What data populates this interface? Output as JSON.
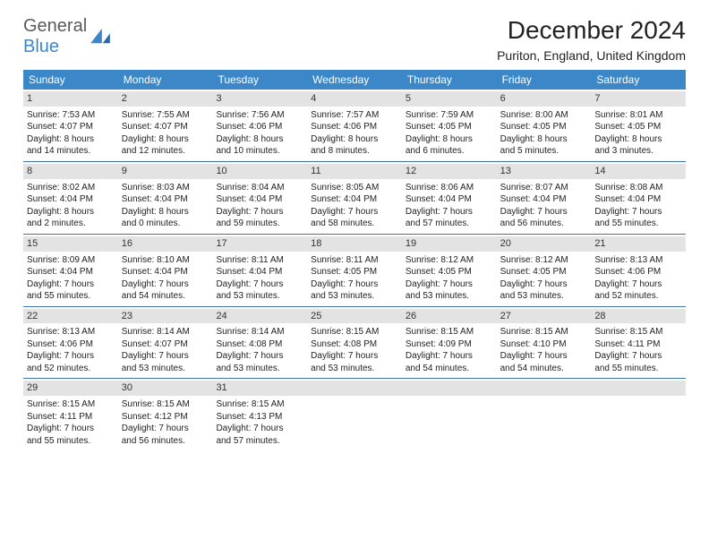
{
  "logo": {
    "word1": "General",
    "word2": "Blue"
  },
  "title": "December 2024",
  "subtitle": "Puriton, England, United Kingdom",
  "colors": {
    "header_bg": "#3b87c8",
    "header_text": "#ffffff",
    "daynum_bg": "#e3e3e3",
    "week_border": "#3b72a8",
    "body_text": "#222222",
    "logo_gray": "#5a5a5a",
    "logo_blue": "#3b87c8"
  },
  "day_headers": [
    "Sunday",
    "Monday",
    "Tuesday",
    "Wednesday",
    "Thursday",
    "Friday",
    "Saturday"
  ],
  "weeks": [
    [
      {
        "n": "1",
        "sr": "Sunrise: 7:53 AM",
        "ss": "Sunset: 4:07 PM",
        "d1": "Daylight: 8 hours",
        "d2": "and 14 minutes."
      },
      {
        "n": "2",
        "sr": "Sunrise: 7:55 AM",
        "ss": "Sunset: 4:07 PM",
        "d1": "Daylight: 8 hours",
        "d2": "and 12 minutes."
      },
      {
        "n": "3",
        "sr": "Sunrise: 7:56 AM",
        "ss": "Sunset: 4:06 PM",
        "d1": "Daylight: 8 hours",
        "d2": "and 10 minutes."
      },
      {
        "n": "4",
        "sr": "Sunrise: 7:57 AM",
        "ss": "Sunset: 4:06 PM",
        "d1": "Daylight: 8 hours",
        "d2": "and 8 minutes."
      },
      {
        "n": "5",
        "sr": "Sunrise: 7:59 AM",
        "ss": "Sunset: 4:05 PM",
        "d1": "Daylight: 8 hours",
        "d2": "and 6 minutes."
      },
      {
        "n": "6",
        "sr": "Sunrise: 8:00 AM",
        "ss": "Sunset: 4:05 PM",
        "d1": "Daylight: 8 hours",
        "d2": "and 5 minutes."
      },
      {
        "n": "7",
        "sr": "Sunrise: 8:01 AM",
        "ss": "Sunset: 4:05 PM",
        "d1": "Daylight: 8 hours",
        "d2": "and 3 minutes."
      }
    ],
    [
      {
        "n": "8",
        "sr": "Sunrise: 8:02 AM",
        "ss": "Sunset: 4:04 PM",
        "d1": "Daylight: 8 hours",
        "d2": "and 2 minutes."
      },
      {
        "n": "9",
        "sr": "Sunrise: 8:03 AM",
        "ss": "Sunset: 4:04 PM",
        "d1": "Daylight: 8 hours",
        "d2": "and 0 minutes."
      },
      {
        "n": "10",
        "sr": "Sunrise: 8:04 AM",
        "ss": "Sunset: 4:04 PM",
        "d1": "Daylight: 7 hours",
        "d2": "and 59 minutes."
      },
      {
        "n": "11",
        "sr": "Sunrise: 8:05 AM",
        "ss": "Sunset: 4:04 PM",
        "d1": "Daylight: 7 hours",
        "d2": "and 58 minutes."
      },
      {
        "n": "12",
        "sr": "Sunrise: 8:06 AM",
        "ss": "Sunset: 4:04 PM",
        "d1": "Daylight: 7 hours",
        "d2": "and 57 minutes."
      },
      {
        "n": "13",
        "sr": "Sunrise: 8:07 AM",
        "ss": "Sunset: 4:04 PM",
        "d1": "Daylight: 7 hours",
        "d2": "and 56 minutes."
      },
      {
        "n": "14",
        "sr": "Sunrise: 8:08 AM",
        "ss": "Sunset: 4:04 PM",
        "d1": "Daylight: 7 hours",
        "d2": "and 55 minutes."
      }
    ],
    [
      {
        "n": "15",
        "sr": "Sunrise: 8:09 AM",
        "ss": "Sunset: 4:04 PM",
        "d1": "Daylight: 7 hours",
        "d2": "and 55 minutes."
      },
      {
        "n": "16",
        "sr": "Sunrise: 8:10 AM",
        "ss": "Sunset: 4:04 PM",
        "d1": "Daylight: 7 hours",
        "d2": "and 54 minutes."
      },
      {
        "n": "17",
        "sr": "Sunrise: 8:11 AM",
        "ss": "Sunset: 4:04 PM",
        "d1": "Daylight: 7 hours",
        "d2": "and 53 minutes."
      },
      {
        "n": "18",
        "sr": "Sunrise: 8:11 AM",
        "ss": "Sunset: 4:05 PM",
        "d1": "Daylight: 7 hours",
        "d2": "and 53 minutes."
      },
      {
        "n": "19",
        "sr": "Sunrise: 8:12 AM",
        "ss": "Sunset: 4:05 PM",
        "d1": "Daylight: 7 hours",
        "d2": "and 53 minutes."
      },
      {
        "n": "20",
        "sr": "Sunrise: 8:12 AM",
        "ss": "Sunset: 4:05 PM",
        "d1": "Daylight: 7 hours",
        "d2": "and 53 minutes."
      },
      {
        "n": "21",
        "sr": "Sunrise: 8:13 AM",
        "ss": "Sunset: 4:06 PM",
        "d1": "Daylight: 7 hours",
        "d2": "and 52 minutes."
      }
    ],
    [
      {
        "n": "22",
        "sr": "Sunrise: 8:13 AM",
        "ss": "Sunset: 4:06 PM",
        "d1": "Daylight: 7 hours",
        "d2": "and 52 minutes."
      },
      {
        "n": "23",
        "sr": "Sunrise: 8:14 AM",
        "ss": "Sunset: 4:07 PM",
        "d1": "Daylight: 7 hours",
        "d2": "and 53 minutes."
      },
      {
        "n": "24",
        "sr": "Sunrise: 8:14 AM",
        "ss": "Sunset: 4:08 PM",
        "d1": "Daylight: 7 hours",
        "d2": "and 53 minutes."
      },
      {
        "n": "25",
        "sr": "Sunrise: 8:15 AM",
        "ss": "Sunset: 4:08 PM",
        "d1": "Daylight: 7 hours",
        "d2": "and 53 minutes."
      },
      {
        "n": "26",
        "sr": "Sunrise: 8:15 AM",
        "ss": "Sunset: 4:09 PM",
        "d1": "Daylight: 7 hours",
        "d2": "and 54 minutes."
      },
      {
        "n": "27",
        "sr": "Sunrise: 8:15 AM",
        "ss": "Sunset: 4:10 PM",
        "d1": "Daylight: 7 hours",
        "d2": "and 54 minutes."
      },
      {
        "n": "28",
        "sr": "Sunrise: 8:15 AM",
        "ss": "Sunset: 4:11 PM",
        "d1": "Daylight: 7 hours",
        "d2": "and 55 minutes."
      }
    ],
    [
      {
        "n": "29",
        "sr": "Sunrise: 8:15 AM",
        "ss": "Sunset: 4:11 PM",
        "d1": "Daylight: 7 hours",
        "d2": "and 55 minutes."
      },
      {
        "n": "30",
        "sr": "Sunrise: 8:15 AM",
        "ss": "Sunset: 4:12 PM",
        "d1": "Daylight: 7 hours",
        "d2": "and 56 minutes."
      },
      {
        "n": "31",
        "sr": "Sunrise: 8:15 AM",
        "ss": "Sunset: 4:13 PM",
        "d1": "Daylight: 7 hours",
        "d2": "and 57 minutes."
      },
      {
        "n": "",
        "sr": "",
        "ss": "",
        "d1": "",
        "d2": "",
        "empty": true
      },
      {
        "n": "",
        "sr": "",
        "ss": "",
        "d1": "",
        "d2": "",
        "empty": true
      },
      {
        "n": "",
        "sr": "",
        "ss": "",
        "d1": "",
        "d2": "",
        "empty": true
      },
      {
        "n": "",
        "sr": "",
        "ss": "",
        "d1": "",
        "d2": "",
        "empty": true
      }
    ]
  ]
}
